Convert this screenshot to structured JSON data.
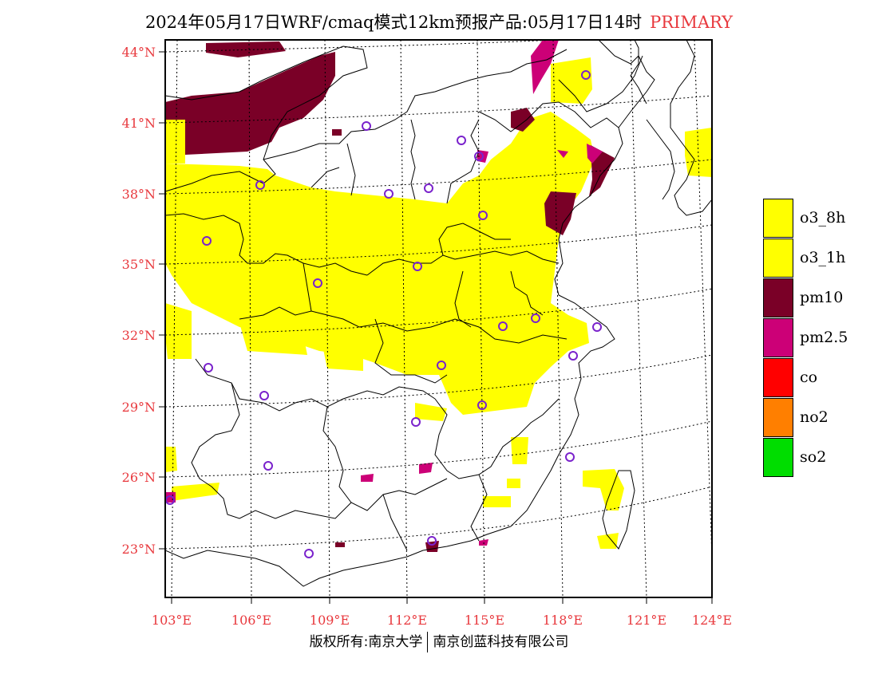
{
  "title": {
    "main": "2024年05月17日WRF/cmaq模式12km预报产品:05月17日14时",
    "tag": "PRIMARY"
  },
  "map": {
    "lon_ticks": [
      "103°E",
      "106°E",
      "109°E",
      "112°E",
      "115°E",
      "118°E",
      "121°E",
      "124°E"
    ],
    "lat_ticks": [
      "44°N",
      "41°N",
      "38°N",
      "35°N",
      "32°N",
      "29°N",
      "26°N",
      "23°N"
    ],
    "label_color": "#e8383d"
  },
  "legend": {
    "items": [
      {
        "label": "o3_8h",
        "color": "#ffff00"
      },
      {
        "label": "o3_1h",
        "color": "#ffff00"
      },
      {
        "label": "pm10",
        "color": "#7a0027"
      },
      {
        "label": "pm2.5",
        "color": "#cc0077"
      },
      {
        "label": "co",
        "color": "#ff0000"
      },
      {
        "label": "no2",
        "color": "#ff7f00"
      },
      {
        "label": "so2",
        "color": "#00dd00"
      }
    ]
  },
  "footer": {
    "left": "版权所有:南京大学",
    "right": "南京创蓝科技有限公司"
  },
  "colors": {
    "o3": "#ffff00",
    "pm10": "#7a0027",
    "pm25": "#cc0077",
    "station": "#7a22cc"
  }
}
